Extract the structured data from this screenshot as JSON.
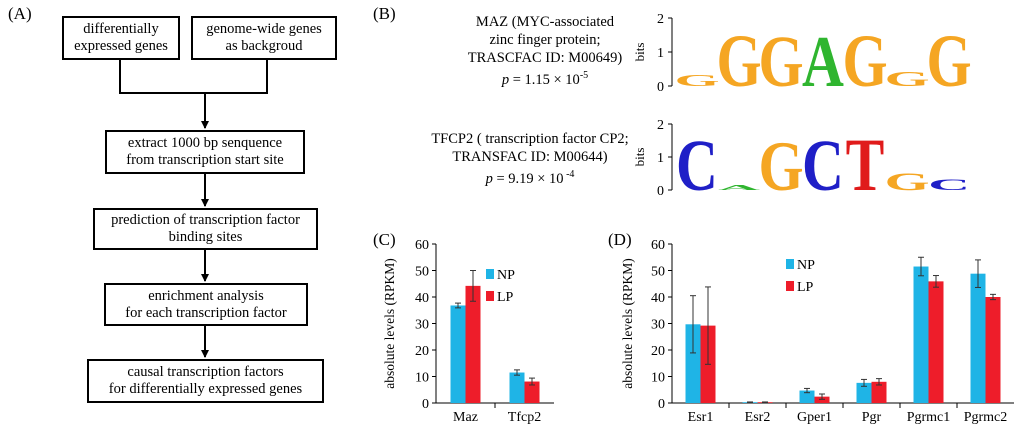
{
  "panels": {
    "a": "(A)",
    "b": "(B)",
    "c": "(C)",
    "d": "(D)"
  },
  "flowchart": {
    "box_de": [
      "differentially",
      "expressed genes"
    ],
    "box_bg": [
      "genome-wide genes",
      "as backgroud"
    ],
    "step1": [
      "extract 1000 bp senquence",
      "from transcription start site"
    ],
    "step2": [
      "prediction of transcription factor",
      "binding sites"
    ],
    "step3": [
      "enrichment analysis",
      "for each transcription factor"
    ],
    "step4": [
      "causal transcription factors",
      "for differentially expressed genes"
    ]
  },
  "motifs": [
    {
      "lines": [
        "MAZ (MYC-associated",
        "zinc finger protein;",
        "TRASCFAC ID: M00649)"
      ],
      "p_prefix": "p",
      "p_value": " = 1.15 × 10",
      "p_exp": "-5",
      "axis_label": "bits",
      "ticks": [
        "2",
        "1",
        "0"
      ],
      "letters": [
        "G",
        "G",
        "G",
        "A",
        "G",
        "G",
        "G"
      ],
      "colors": [
        "#f5a623",
        "#f5a623",
        "#f5a623",
        "#2fb52f",
        "#f5a623",
        "#f5a623",
        "#f5a623"
      ],
      "heights": [
        0.35,
        1.6,
        1.55,
        1.55,
        1.6,
        0.45,
        1.6
      ]
    },
    {
      "lines": [
        "TFCP2 ( transcription factor CP2;",
        "TRANSFAC ID: M00644)"
      ],
      "p_prefix": "p",
      "p_value": " = 9.19 × 10",
      "p_exp": " -4",
      "axis_label": "bits",
      "ticks": [
        "2",
        "1",
        "0"
      ],
      "letters": [
        "C",
        "A",
        "G",
        "C",
        "T",
        "G",
        "C"
      ],
      "colors": [
        "#1f1fc7",
        "#2fb52f",
        "#f5a623",
        "#1f1fc7",
        "#e01b1b",
        "#f5a623",
        "#1f1fc7"
      ],
      "heights": [
        1.6,
        0.15,
        1.55,
        1.6,
        1.65,
        0.55,
        0.35
      ]
    }
  ],
  "chart_data": [
    {
      "type": "bar",
      "ylabel": "absolute levels (RPKM)",
      "ylim": [
        0,
        60
      ],
      "yticks": [
        "0",
        "10",
        "20",
        "30",
        "40",
        "50",
        "60"
      ],
      "categories": [
        "Maz",
        "Tfcp2"
      ],
      "series": [
        {
          "name": "NP",
          "color": "#1fb4e6",
          "values": [
            36.8,
            11.5
          ],
          "errors": [
            0.9,
            1.0
          ]
        },
        {
          "name": "LP",
          "color": "#ee1d2a",
          "values": [
            44.2,
            8.1
          ],
          "errors": [
            5.8,
            1.3
          ]
        }
      ]
    },
    {
      "type": "bar",
      "ylabel": "absolute levels (RPKM)",
      "ylim": [
        0,
        60
      ],
      "yticks": [
        "0",
        "10",
        "20",
        "30",
        "40",
        "50",
        "60"
      ],
      "categories": [
        "Esr1",
        "Esr2",
        "Gper1",
        "Pgr",
        "Pgrmc1",
        "Pgrmc2"
      ],
      "series": [
        {
          "name": "NP",
          "color": "#1fb4e6",
          "values": [
            29.7,
            0.3,
            4.7,
            7.6,
            51.5,
            48.8
          ],
          "errors": [
            10.8,
            0.1,
            0.8,
            1.3,
            3.5,
            5.2
          ]
        },
        {
          "name": "LP",
          "color": "#ee1d2a",
          "values": [
            29.2,
            0.3,
            2.4,
            8.0,
            45.9,
            40.0
          ],
          "errors": [
            14.6,
            0.1,
            1.0,
            1.2,
            2.2,
            1.0
          ]
        }
      ]
    }
  ]
}
